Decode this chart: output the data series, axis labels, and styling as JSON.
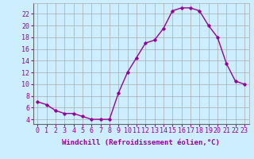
{
  "x": [
    0,
    1,
    2,
    3,
    4,
    5,
    6,
    7,
    8,
    9,
    10,
    11,
    12,
    13,
    14,
    15,
    16,
    17,
    18,
    19,
    20,
    21,
    22,
    23
  ],
  "y": [
    7,
    6.5,
    5.5,
    5,
    5,
    4.5,
    4,
    4,
    4,
    8.5,
    12,
    14.5,
    17,
    17.5,
    19.5,
    22.5,
    23,
    23,
    22.5,
    20,
    18,
    13.5,
    10.5,
    10
  ],
  "line_color": "#990099",
  "marker": "D",
  "marker_size": 1.8,
  "bg_color": "#cceeff",
  "grid_color": "#aaaaaa",
  "xlabel": "Windchill (Refroidissement éolien,°C)",
  "ylabel_ticks": [
    4,
    6,
    8,
    10,
    12,
    14,
    16,
    18,
    20,
    22
  ],
  "xticks": [
    0,
    1,
    2,
    3,
    4,
    5,
    6,
    7,
    8,
    9,
    10,
    11,
    12,
    13,
    14,
    15,
    16,
    17,
    18,
    19,
    20,
    21,
    22,
    23
  ],
  "ylim": [
    3.2,
    23.8
  ],
  "xlim": [
    -0.5,
    23.5
  ],
  "tick_color": "#990099",
  "xlabel_fontsize": 6.5,
  "tick_fontsize": 6.0,
  "linewidth": 1.0
}
